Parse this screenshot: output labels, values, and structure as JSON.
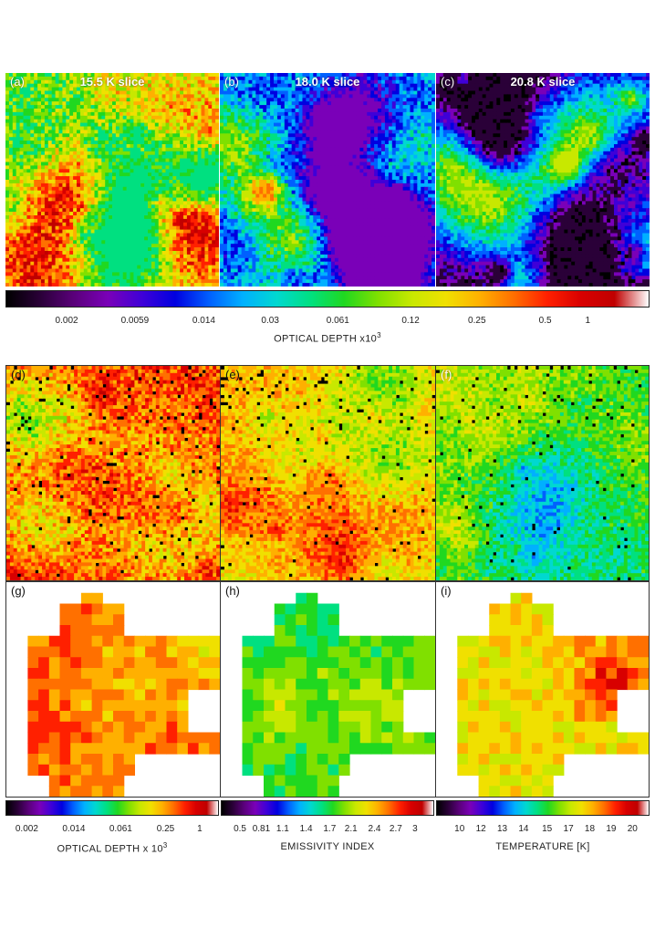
{
  "figure": {
    "top_panels": [
      {
        "id": "a",
        "label": "(a)",
        "title": "15.5 K slice",
        "map": "a"
      },
      {
        "id": "b",
        "label": "(b)",
        "title": "18.0 K slice",
        "map": "b"
      },
      {
        "id": "c",
        "label": "(c)",
        "title": "20.8 K slice",
        "map": "c"
      }
    ],
    "top_colorbar": {
      "ticks": [
        "0.002",
        "0.0059",
        "0.014",
        "0.03",
        "0.061",
        "0.12",
        "0.25",
        "0.5",
        "1"
      ],
      "title_main": "OPTICAL DEPTH x10",
      "title_exp": "3"
    },
    "mid_panels": [
      {
        "id": "d",
        "label": "(d)",
        "map": "d"
      },
      {
        "id": "e",
        "label": "(e)",
        "map": "e"
      },
      {
        "id": "f",
        "label": "(f)",
        "map": "f"
      }
    ],
    "low_panels": [
      {
        "id": "g",
        "label": "(g)",
        "map": "g"
      },
      {
        "id": "h",
        "label": "(h)",
        "map": "h"
      },
      {
        "id": "i",
        "label": "(i)",
        "map": "i"
      }
    ],
    "bottom_colorbars": [
      {
        "ticks": [
          "0.002",
          "0.014",
          "0.061",
          "0.25",
          "1"
        ],
        "title_main": "OPTICAL DEPTH x 10",
        "title_exp": "3"
      },
      {
        "ticks": [
          "0.5",
          "0.81",
          "1.1",
          "1.4",
          "1.7",
          "2.1",
          "2.4",
          "2.7",
          "3"
        ],
        "title_main": "EMISSIVITY INDEX",
        "title_exp": ""
      },
      {
        "ticks": [
          "10",
          "12",
          "13",
          "14",
          "15",
          "17",
          "18",
          "19",
          "20"
        ],
        "title_main": "TEMPERATURE  [K]",
        "title_exp": ""
      }
    ],
    "colormap": [
      "#000000",
      "#2a0038",
      "#5a007a",
      "#7a00b8",
      "#3f00d8",
      "#0000e0",
      "#0060ff",
      "#00b0ff",
      "#00d8d0",
      "#00e080",
      "#20d820",
      "#80e000",
      "#c8e800",
      "#f0e000",
      "#ffb000",
      "#ff7000",
      "#ff2000",
      "#d80000",
      "#c00000",
      "#ffffff"
    ]
  }
}
